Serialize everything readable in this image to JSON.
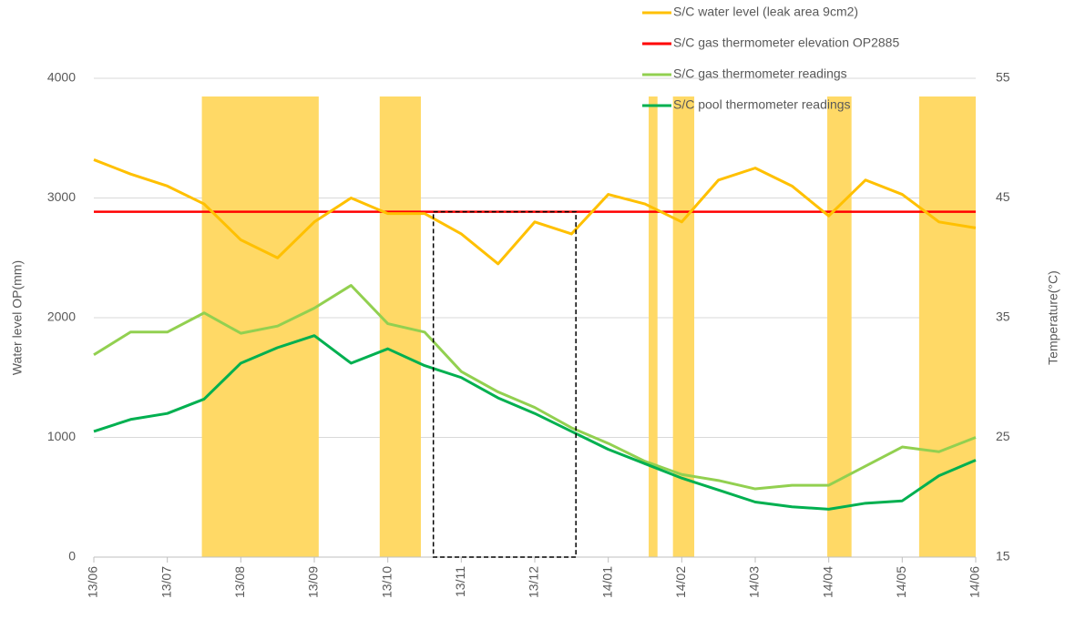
{
  "chart_data": {
    "type": "line",
    "ylabel": "Water level OP(mm)",
    "y2label": "Temperature(°C)",
    "xlim": [
      0,
      12
    ],
    "xticks": [
      {
        "value": 0,
        "label": "13/06"
      },
      {
        "value": 1,
        "label": "13/07"
      },
      {
        "value": 2,
        "label": "13/08"
      },
      {
        "value": 3,
        "label": "13/09"
      },
      {
        "value": 4,
        "label": "13/10"
      },
      {
        "value": 5,
        "label": "13/11"
      },
      {
        "value": 6,
        "label": "13/12"
      },
      {
        "value": 7,
        "label": "14/01"
      },
      {
        "value": 8,
        "label": "14/02"
      },
      {
        "value": 9,
        "label": "14/03"
      },
      {
        "value": 10,
        "label": "14/04"
      },
      {
        "value": 11,
        "label": "14/05"
      },
      {
        "value": 12,
        "label": "14/06"
      }
    ],
    "ylim": [
      0,
      4000
    ],
    "yticks": [
      0,
      1000,
      2000,
      3000,
      4000
    ],
    "y2lim": [
      15,
      55
    ],
    "y2ticks": [
      15,
      25,
      35,
      45,
      55
    ],
    "grid": true,
    "x": [
      0,
      0.5,
      1,
      1.5,
      2,
      2.5,
      3,
      3.5,
      4,
      4.5,
      5,
      5.5,
      6,
      6.5,
      7,
      7.5,
      8,
      8.5,
      9,
      9.5,
      10,
      10.5,
      11,
      11.5,
      12
    ],
    "series": [
      {
        "name": "S/C water level (leak area 9cm2)",
        "color": "#ffc000",
        "values": [
          3320,
          3200,
          3100,
          2950,
          2650,
          2500,
          2800,
          3000,
          2870,
          2870,
          2700,
          2450,
          2800,
          2700,
          3030,
          2950,
          2800,
          3150,
          3250,
          3100,
          2850,
          3150,
          3030,
          2800,
          2750
        ]
      },
      {
        "name": "S/C gas thermometer readings",
        "color": "#92d050",
        "axis": "y2",
        "values": [
          31.9,
          33.8,
          33.8,
          35.4,
          33.7,
          34.3,
          35.8,
          37.7,
          34.5,
          33.8,
          30.5,
          28.8,
          27.5,
          25.8,
          24.5,
          23.0,
          21.9,
          21.4,
          20.7,
          21.0,
          21.0,
          22.6,
          24.2,
          23.8,
          25.0
        ]
      },
      {
        "name": "S/C pool thermometer readings",
        "color": "#00b050",
        "axis": "y2",
        "values": [
          25.5,
          26.5,
          27.0,
          28.2,
          31.2,
          32.5,
          33.5,
          31.2,
          32.4,
          31.0,
          30.0,
          28.3,
          27.0,
          25.5,
          24.0,
          22.8,
          21.6,
          20.6,
          19.6,
          19.2,
          19.0,
          19.5,
          19.7,
          21.8,
          23.1
        ]
      }
    ],
    "reference_line": {
      "name": "S/C gas thermometer elevation OP2885",
      "color": "#ff0000",
      "value": 2885
    },
    "shaded_periods": {
      "color": "#ffd966",
      "ranges": [
        [
          1.47,
          3.06
        ],
        [
          3.89,
          4.45
        ],
        [
          7.55,
          7.67
        ],
        [
          7.88,
          8.17
        ],
        [
          9.98,
          10.31
        ],
        [
          11.23,
          12
        ]
      ]
    },
    "highlight_box": {
      "x": [
        4.62,
        6.56
      ],
      "y": [
        0,
        2885
      ]
    }
  }
}
